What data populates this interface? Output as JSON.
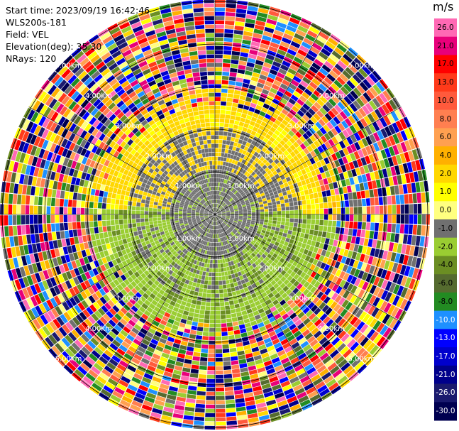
{
  "info": {
    "start_time": "Start time: 2023/09/19 16:42:46",
    "instrument": "WLS200s-181",
    "field": "Field: VEL",
    "elevation": "Elevation(deg): 35.30",
    "nrays": "NRays: 120"
  },
  "colorbar": {
    "unit": "m/s",
    "ticks": [
      "26.0",
      "21.0",
      "17.0",
      "13.0",
      "10.0",
      "8.0",
      "6.0",
      "4.0",
      "2.0",
      "1.0",
      "0.0",
      "-1.0",
      "-2.0",
      "-4.0",
      "-6.0",
      "-8.0",
      "-10.0",
      "-13.0",
      "-17.0",
      "-21.0",
      "-26.0",
      "-30.0"
    ],
    "colors": [
      "#ff69b4",
      "#e8007a",
      "#ff0000",
      "#ff3a1a",
      "#ff5a3c",
      "#ff7f50",
      "#ffa050",
      "#ffb000",
      "#ffd700",
      "#ffff00",
      "#ffff80",
      "#707070",
      "#9acd32",
      "#6b8e23",
      "#556b2f",
      "#228b22",
      "#1e90ff",
      "#0000ff",
      "#0000cd",
      "#00008b",
      "#1a1a6e",
      "#000050"
    ]
  },
  "range_labels": {
    "r1": "1.00km",
    "r2": "2.00km",
    "r3": "3.00km",
    "r4": "4.00km",
    "r5": "5.00km"
  },
  "icons": {
    "ppi": "radar-ppi-scan"
  }
}
